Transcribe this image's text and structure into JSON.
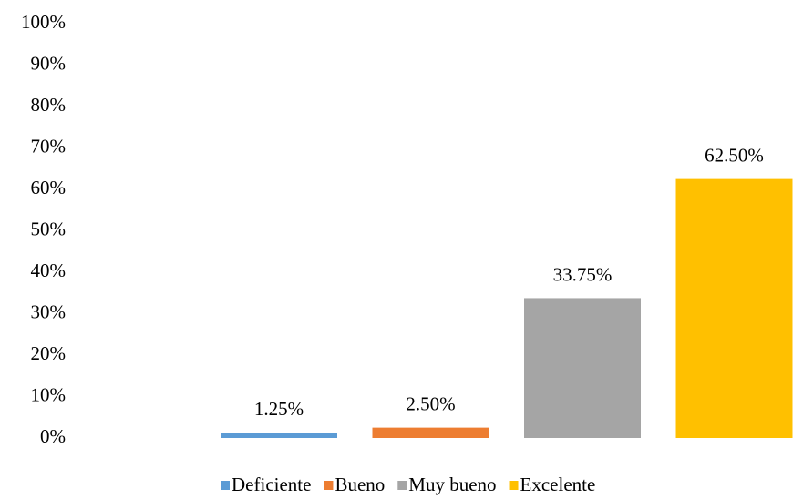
{
  "chart_data": {
    "type": "bar",
    "categories": [
      null
    ],
    "series": [
      {
        "name": "Deficiente",
        "color": "#5b9bd5",
        "values": [
          1.25
        ],
        "value_labels": [
          "1.25%"
        ]
      },
      {
        "name": "Bueno",
        "color": "#ed7d31",
        "values": [
          2.5
        ],
        "value_labels": [
          "2.50%"
        ]
      },
      {
        "name": "Muy bueno",
        "color": "#a5a5a5",
        "values": [
          33.75
        ],
        "value_labels": [
          "33.75%"
        ]
      },
      {
        "name": "Excelente",
        "color": "#ffc000",
        "values": [
          62.5
        ],
        "value_labels": [
          "62.50%"
        ]
      }
    ],
    "ylim": [
      0,
      100
    ],
    "yticks": [
      {
        "value": 0,
        "label": "0%"
      },
      {
        "value": 10,
        "label": "10%"
      },
      {
        "value": 20,
        "label": "20%"
      },
      {
        "value": 30,
        "label": "30%"
      },
      {
        "value": 40,
        "label": "40%"
      },
      {
        "value": 50,
        "label": "50%"
      },
      {
        "value": 60,
        "label": "60%"
      },
      {
        "value": 70,
        "label": "70%"
      },
      {
        "value": 80,
        "label": "80%"
      },
      {
        "value": 90,
        "label": "90%"
      },
      {
        "value": 100,
        "label": "100%"
      }
    ],
    "grid": false,
    "legend": "bottom"
  }
}
